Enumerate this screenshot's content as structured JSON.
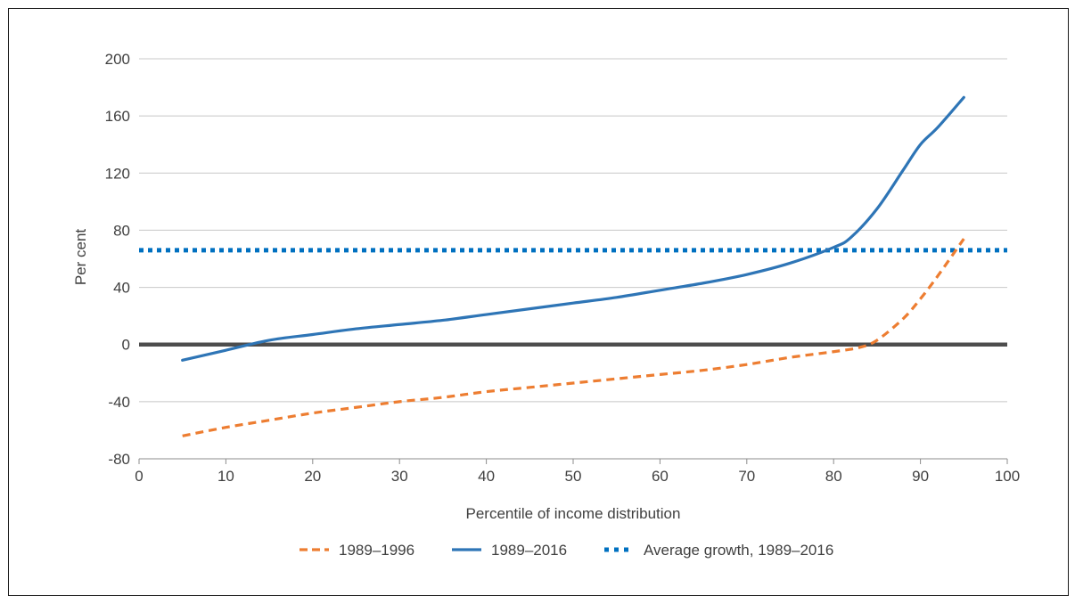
{
  "chart_data": {
    "type": "line",
    "xlabel": "Percentile of income distribution",
    "ylabel": "Per cent",
    "xlim": [
      0,
      100
    ],
    "ylim": [
      -80,
      200
    ],
    "xticks": [
      0,
      10,
      20,
      30,
      40,
      50,
      60,
      70,
      80,
      90,
      100
    ],
    "yticks": [
      -80,
      -40,
      0,
      40,
      80,
      120,
      160,
      200
    ],
    "grid": "horizontal",
    "legend_position": "bottom",
    "zero_line": true,
    "series": [
      {
        "name": "1989–1996",
        "style": "dashed",
        "color": "#ED7D31",
        "x": [
          5,
          10,
          15,
          20,
          25,
          30,
          35,
          40,
          45,
          50,
          55,
          60,
          65,
          70,
          75,
          80,
          83,
          85,
          88,
          90,
          92,
          95
        ],
        "y": [
          -64,
          -58,
          -53,
          -48,
          -44,
          -40,
          -37,
          -33,
          -30,
          -27,
          -24,
          -21,
          -18,
          -14,
          -9,
          -5,
          -2,
          3,
          18,
          32,
          48,
          74
        ]
      },
      {
        "name": "1989–2016",
        "style": "solid",
        "color": "#2E75B6",
        "x": [
          5,
          10,
          15,
          20,
          25,
          30,
          35,
          40,
          45,
          50,
          55,
          60,
          65,
          70,
          75,
          80,
          82,
          85,
          88,
          90,
          92,
          95
        ],
        "y": [
          -11,
          -4,
          3,
          7,
          11,
          14,
          17,
          21,
          25,
          29,
          33,
          38,
          43,
          49,
          57,
          68,
          75,
          95,
          122,
          140,
          152,
          173
        ]
      },
      {
        "name": "Average growth, 1989–2016",
        "style": "dotted",
        "color": "#0070C0",
        "x": [
          0,
          100
        ],
        "y": [
          66,
          66
        ]
      }
    ]
  }
}
